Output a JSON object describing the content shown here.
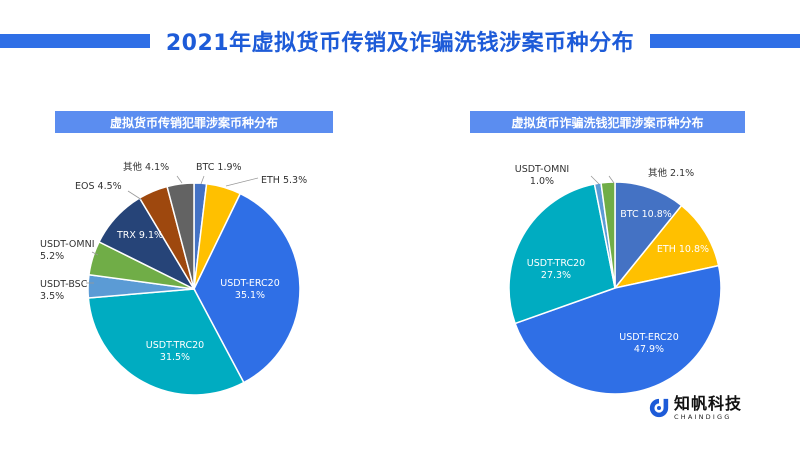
{
  "title": "2021年虚拟货币传销及诈骗洗钱涉案币种分布",
  "chart_data": [
    {
      "type": "pie",
      "title": "虚拟货币传销犯罪涉案币种分布",
      "series": [
        {
          "slices": [
            {
              "label": "BTC",
              "value": 1.9,
              "display": "1.9%",
              "color": "#4472c4"
            },
            {
              "label": "ETH",
              "value": 5.3,
              "display": "5.3%",
              "color": "#ffc000"
            },
            {
              "label": "USDT-ERC20",
              "value": 35.1,
              "display": "35.1%",
              "color": "#2f6fe6"
            },
            {
              "label": "USDT-TRC20",
              "value": 31.5,
              "display": "31.5%",
              "color": "#00acc1"
            },
            {
              "label": "USDT-BSC",
              "value": 3.5,
              "display": "3.5%",
              "color": "#5b9bd5"
            },
            {
              "label": "USDT-OMNI",
              "value": 5.2,
              "display": "5.2%",
              "color": "#70ad47"
            },
            {
              "label": "TRX",
              "value": 9.1,
              "display": "9.1%",
              "color": "#264478"
            },
            {
              "label": "EOS",
              "value": 4.5,
              "display": "4.5%",
              "color": "#9e480e"
            },
            {
              "label": "其他",
              "value": 4.1,
              "display": "4.1%",
              "color": "#636363"
            }
          ]
        }
      ]
    },
    {
      "type": "pie",
      "title": "虚拟货币诈骗洗钱犯罪涉案币种分布",
      "series": [
        {
          "slices": [
            {
              "label": "BTC",
              "value": 10.8,
              "display": "10.8%",
              "color": "#4472c4"
            },
            {
              "label": "ETH",
              "value": 10.8,
              "display": "10.8%",
              "color": "#ffc000"
            },
            {
              "label": "USDT-ERC20",
              "value": 47.9,
              "display": "47.9%",
              "color": "#2f6fe6"
            },
            {
              "label": "USDT-TRC20",
              "value": 27.3,
              "display": "27.3%",
              "color": "#00acc1"
            },
            {
              "label": "USDT-OMNI",
              "value": 1.0,
              "display": "1.0%",
              "color": "#5b9bd5"
            },
            {
              "label": "其他",
              "value": 2.1,
              "display": "2.1%",
              "color": "#70ad47"
            }
          ]
        }
      ]
    }
  ],
  "logo": {
    "name": "知帆科技",
    "sub": "CHAINDIGG"
  }
}
